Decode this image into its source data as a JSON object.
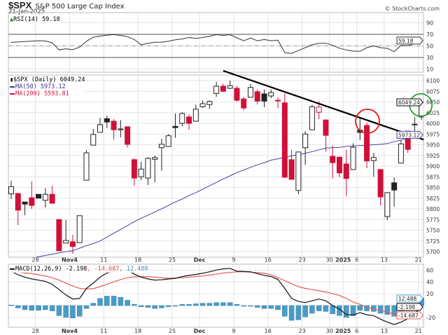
{
  "header": {
    "symbol": "$SPX",
    "name": "S&P 500 Large Cap Index",
    "date": "21-Jan-2025",
    "copyright": "© StockCharts.com"
  },
  "legend": {
    "rsi": "RSI(14) 59.18",
    "price": "$SPX (Daily) 6049.24",
    "ma50": "MA(50) 5973.12",
    "ma200": "MA(200) 5593.81",
    "macd_label": "MACD(12,26,9)",
    "macd_value": "-2.198",
    "signal_value": "-14.687",
    "hist_value": "12.488"
  },
  "colors": {
    "down": "#d0103a",
    "up": "#222222",
    "ma50": "#4a40a0",
    "macd": "#111111",
    "signal": "#e85a5a",
    "histogram": "#4a9cc8",
    "rsi": "#333333",
    "trendline": "#000000",
    "circle_red": "#e02020",
    "circle_green": "#20a030"
  },
  "chart_data": {
    "type": "candlestick",
    "x_ticks": [
      {
        "date": "2024-10-28",
        "label": "28"
      },
      {
        "date": "2024-11-04",
        "label": "Nov4"
      },
      {
        "date": "2024-11-11",
        "label": "11"
      },
      {
        "date": "2024-11-18",
        "label": "18"
      },
      {
        "date": "2024-11-25",
        "label": "25"
      },
      {
        "date": "2024-12-02",
        "label": "Dec"
      },
      {
        "date": "2024-12-09",
        "label": "9"
      },
      {
        "date": "2024-12-16",
        "label": "16"
      },
      {
        "date": "2024-12-23",
        "label": "23"
      },
      {
        "date": "2024-12-30",
        "label": "30"
      },
      {
        "date": "2025-01-02",
        "label": "2025"
      },
      {
        "date": "2025-01-06",
        "label": "6"
      },
      {
        "date": "2025-01-13",
        "label": "13"
      },
      {
        "date": "2025-01-21",
        "label": "21"
      }
    ],
    "price_panel": {
      "ylim": [
        5690,
        6115
      ],
      "y_ticks": [
        6100,
        6075,
        6050,
        6025,
        6000,
        5975,
        5950,
        5925,
        5900,
        5875,
        5850,
        5825,
        5800,
        5775,
        5750,
        5725,
        5700
      ],
      "last_price": "6049.24",
      "last_ma50": "5973.12",
      "candles_columns": [
        "date",
        "open",
        "high",
        "low",
        "close"
      ],
      "candles": [
        [
          "2024-10-22",
          5835,
          5866,
          5823,
          5852
        ],
        [
          "2024-10-23",
          5836,
          5836,
          5762,
          5797
        ],
        [
          "2024-10-24",
          5816,
          5816,
          5785,
          5811
        ],
        [
          "2024-10-25",
          5826,
          5864,
          5800,
          5808
        ],
        [
          "2024-10-28",
          5834,
          5834,
          5825,
          5825
        ],
        [
          "2024-10-29",
          5820,
          5848,
          5803,
          5834
        ],
        [
          "2024-10-30",
          5834,
          5854,
          5813,
          5813
        ],
        [
          "2024-10-31",
          5775,
          5775,
          5702,
          5702
        ],
        [
          "2024-11-01",
          5720,
          5774,
          5720,
          5726
        ],
        [
          "2024-11-04",
          5723,
          5739,
          5695,
          5712
        ],
        [
          "2024-11-05",
          5721,
          5784,
          5721,
          5784
        ],
        [
          "2024-11-06",
          5867,
          5938,
          5867,
          5931
        ],
        [
          "2024-11-07",
          5949,
          5987,
          5949,
          5974
        ],
        [
          "2024-11-08",
          5979,
          6013,
          5979,
          5997
        ],
        [
          "2024-11-11",
          6011,
          6018,
          5989,
          6003
        ],
        [
          "2024-11-12",
          6005,
          6010,
          5962,
          5985
        ],
        [
          "2024-11-13",
          5985,
          6008,
          5967,
          5987
        ],
        [
          "2024-11-14",
          5992,
          5993,
          5944,
          5951
        ],
        [
          "2024-11-15",
          5915,
          5918,
          5854,
          5872
        ],
        [
          "2024-11-18",
          5875,
          5910,
          5867,
          5893
        ],
        [
          "2024-11-19",
          5872,
          5921,
          5856,
          5918
        ],
        [
          "2024-11-20",
          5916,
          5925,
          5862,
          5920
        ],
        [
          "2024-11-21",
          5943,
          5964,
          5889,
          5951
        ],
        [
          "2024-11-22",
          5946,
          5975,
          5946,
          5971
        ],
        [
          "2024-11-25",
          5993,
          6023,
          5966,
          5990
        ],
        [
          "2024-11-26",
          6000,
          6026,
          5993,
          6023
        ],
        [
          "2024-11-27",
          6015,
          6021,
          5985,
          6000
        ],
        [
          "2024-11-29",
          6005,
          6044,
          6005,
          6033
        ],
        [
          "2024-12-02",
          6039,
          6054,
          6036,
          6046
        ],
        [
          "2024-12-03",
          6044,
          6054,
          6034,
          6051
        ],
        [
          "2024-12-04",
          6070,
          6097,
          6062,
          6087
        ],
        [
          "2024-12-05",
          6087,
          6093,
          6074,
          6075
        ],
        [
          "2024-12-06",
          6082,
          6100,
          6080,
          6088
        ],
        [
          "2024-12-09",
          6082,
          6088,
          6051,
          6054
        ],
        [
          "2024-12-10",
          6057,
          6062,
          6031,
          6036
        ],
        [
          "2024-12-11",
          6061,
          6092,
          6061,
          6084
        ],
        [
          "2024-12-12",
          6074,
          6079,
          6044,
          6052
        ],
        [
          "2024-12-13",
          6069,
          6079,
          6038,
          6052
        ],
        [
          "2024-12-16",
          6064,
          6079,
          6059,
          6072
        ],
        [
          "2024-12-17",
          6054,
          6061,
          6036,
          6053
        ],
        [
          "2024-12-18",
          6048,
          6070,
          5872,
          5874
        ],
        [
          "2024-12-19",
          5915,
          5938,
          5869,
          5869
        ],
        [
          "2024-12-20",
          5843,
          5933,
          5834,
          5933
        ],
        [
          "2024-12-23",
          5943,
          5982,
          5903,
          5975
        ],
        [
          "2024-12-24",
          5985,
          6043,
          5985,
          6039
        ],
        [
          "2024-12-26",
          6026,
          6051,
          6010,
          6038
        ],
        [
          "2024-12-27",
          6008,
          6008,
          5934,
          5972
        ],
        [
          "2024-12-30",
          5923,
          5948,
          5871,
          5908
        ],
        [
          "2024-12-31",
          5921,
          5921,
          5874,
          5884
        ],
        [
          "2025-01-02",
          5905,
          5938,
          5830,
          5871
        ],
        [
          "2025-01-03",
          5892,
          5953,
          5892,
          5944
        ],
        [
          "2025-01-06",
          5984,
          6013,
          5961,
          5979
        ],
        [
          "2025-01-07",
          5995,
          6002,
          5895,
          5912
        ],
        [
          "2025-01-08",
          5913,
          5931,
          5875,
          5920
        ],
        [
          "2025-01-10",
          5892,
          5892,
          5808,
          5828
        ],
        [
          "2025-01-13",
          5782,
          5839,
          5774,
          5838
        ],
        [
          "2025-01-14",
          5861,
          5874,
          5805,
          5844
        ],
        [
          "2025-01-15",
          5907,
          5961,
          5907,
          5952
        ],
        [
          "2025-01-16",
          5982,
          5982,
          5931,
          5939
        ],
        [
          "2025-01-17",
          5998,
          6015,
          5980,
          5998
        ],
        [
          "2025-01-21",
          6015,
          6054,
          6008,
          6049
        ]
      ],
      "ma50": [
        5672,
        5676,
        5680,
        5684,
        5688,
        5691,
        5694,
        5697,
        5700,
        5702,
        5708,
        5714,
        5719,
        5725,
        5734,
        5743,
        5752,
        5761,
        5770,
        5778,
        5785,
        5793,
        5800,
        5808,
        5816,
        5823,
        5831,
        5838,
        5846,
        5854,
        5862,
        5870,
        5877,
        5885,
        5891,
        5897,
        5903,
        5908,
        5914,
        5917,
        5920,
        5924,
        5927,
        5930,
        5934,
        5938,
        5942,
        5943,
        5944,
        5946,
        5947,
        5948,
        5949,
        5950,
        5951,
        5953,
        5957,
        5961,
        5965,
        5969,
        5973.12
      ],
      "annotations": {
        "trendline": [
          {
            "date": "2024-12-05",
            "price": 6123
          },
          {
            "date": "2025-01-21",
            "price": 5962
          }
        ],
        "circles": [
          {
            "date": "2025-01-07",
            "price": 6005,
            "color": "red"
          },
          {
            "date": "2025-01-21",
            "price": 6043,
            "color": "green"
          }
        ]
      }
    },
    "rsi_panel": {
      "ylim": [
        0,
        100
      ],
      "y_ticks": [
        90,
        70,
        50,
        30,
        10
      ],
      "reference_lines": [
        70,
        50,
        30
      ],
      "last": "59.18",
      "values": [
        56,
        56.8,
        57.5,
        58.3,
        59,
        58.5,
        55.5,
        43,
        45,
        43.5,
        48,
        58,
        65,
        67,
        68.5,
        69.5,
        68,
        66,
        61,
        52,
        54.5,
        56.3,
        56.5,
        58,
        60.5,
        62,
        64.5,
        63,
        64.5,
        66.5,
        69.5,
        68,
        69.5,
        64,
        59,
        63.6,
        59,
        61,
        59,
        60,
        38.5,
        37,
        42,
        47,
        52,
        54.6,
        54.6,
        51,
        46,
        43,
        41,
        40.5,
        47,
        50,
        47,
        45.7,
        40,
        51,
        50.2,
        54,
        59.18
      ]
    },
    "macd_panel": {
      "ylim": [
        -35,
        65
      ],
      "y_ticks": [
        60,
        40,
        20,
        -20
      ],
      "last_macd": "-2.198",
      "last_signal": "-14.687",
      "last_hist": "12.488",
      "macd": [
        58,
        52,
        48,
        45,
        43,
        41,
        36,
        27,
        18,
        11,
        12,
        29,
        38,
        48,
        55,
        58,
        60,
        60,
        53,
        48,
        45,
        43,
        43.5,
        45,
        46,
        49,
        51,
        52.5,
        54.5,
        57,
        60,
        62,
        63,
        58,
        57.5,
        57,
        54,
        51,
        49,
        44,
        29,
        12,
        7,
        5,
        8,
        11,
        8,
        0,
        -6,
        -15,
        -16,
        -12,
        -15.5,
        -17,
        -23,
        -28,
        -32,
        -28,
        -22,
        -13,
        -2.198
      ],
      "signal": [
        58,
        56.5,
        55,
        54,
        52,
        50,
        47,
        43,
        38,
        33,
        29,
        28,
        28.5,
        32,
        36,
        40,
        44,
        47,
        48.5,
        49,
        49,
        48,
        47,
        46,
        46.5,
        47,
        48,
        49,
        50,
        51.5,
        53,
        55,
        56,
        57,
        57,
        56.5,
        55.5,
        54.5,
        52,
        47,
        42,
        37,
        32,
        29,
        27,
        25,
        23,
        20,
        17,
        12,
        6,
        2,
        -3,
        -6,
        -8,
        -11,
        -15,
        -17,
        -18,
        -17,
        -14.687
      ],
      "histogram": [
        1,
        -4,
        -7,
        -8,
        -8,
        -7,
        -9,
        -17,
        -20,
        -21,
        -18,
        -5,
        4,
        12,
        16,
        16,
        14,
        9,
        2,
        -2,
        -3,
        -5,
        -4,
        -2,
        -1,
        2,
        2,
        3,
        4,
        4,
        5,
        5,
        5,
        2,
        -1,
        -1,
        -3,
        -5,
        -5,
        -7,
        -18,
        -25,
        -24,
        -19,
        -13,
        -9,
        -10,
        -14,
        -17,
        -20,
        -17,
        -8,
        -9,
        -10,
        -13,
        -15,
        -18,
        -9,
        -3,
        3,
        12.488
      ]
    }
  }
}
